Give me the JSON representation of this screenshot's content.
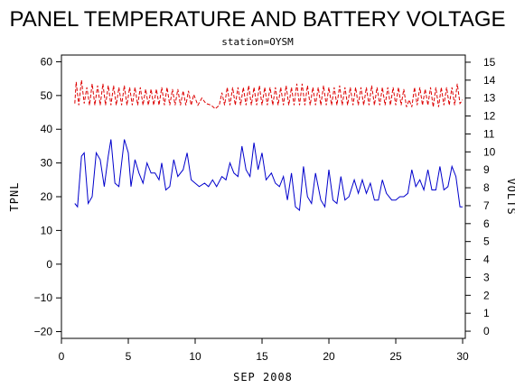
{
  "chart_data": {
    "type": "line",
    "title": "PANEL TEMPERATURE AND BATTERY VOLTAGE",
    "subtitle": "station=OYSM",
    "xlabel": "SEP 2008",
    "ylabel_left": "TPNL",
    "ylabel_right": "VOLTS",
    "xlim": [
      0,
      30.2
    ],
    "ylim_left": [
      -22,
      62
    ],
    "ylim_right": [
      -0.4,
      15.4
    ],
    "x_ticks": [
      0,
      5,
      10,
      15,
      20,
      25,
      30
    ],
    "y_left_ticks": [
      -20,
      -10,
      0,
      10,
      20,
      30,
      40,
      50,
      60
    ],
    "y_right_ticks": [
      0,
      1,
      2,
      3,
      4,
      5,
      6,
      7,
      8,
      9,
      10,
      11,
      12,
      13,
      14,
      15
    ],
    "colors": {
      "temperature": "#0000cc",
      "voltage": "#dd0000",
      "axes": "#000000"
    },
    "series": [
      {
        "axis": "left",
        "values": [
          [
            1.0,
            18
          ],
          [
            1.2,
            17
          ],
          [
            1.5,
            32
          ],
          [
            1.7,
            33
          ],
          [
            2.0,
            18
          ],
          [
            2.3,
            20
          ],
          [
            2.6,
            33
          ],
          [
            2.9,
            31
          ],
          [
            3.2,
            23
          ],
          [
            3.5,
            32
          ],
          [
            3.7,
            37
          ],
          [
            4.0,
            24
          ],
          [
            4.3,
            23
          ],
          [
            4.7,
            37
          ],
          [
            5.0,
            33
          ],
          [
            5.2,
            23
          ],
          [
            5.5,
            31
          ],
          [
            5.8,
            27
          ],
          [
            6.1,
            24
          ],
          [
            6.4,
            30
          ],
          [
            6.7,
            27
          ],
          [
            7.0,
            27
          ],
          [
            7.3,
            25
          ],
          [
            7.5,
            30
          ],
          [
            7.8,
            22
          ],
          [
            8.1,
            23
          ],
          [
            8.4,
            31
          ],
          [
            8.7,
            26
          ],
          [
            9.1,
            28
          ],
          [
            9.4,
            33
          ],
          [
            9.7,
            25
          ],
          [
            10.0,
            24
          ],
          [
            10.3,
            23
          ],
          [
            10.7,
            24
          ],
          [
            11.0,
            23
          ],
          [
            11.3,
            25
          ],
          [
            11.6,
            23
          ],
          [
            12.0,
            26
          ],
          [
            12.3,
            25
          ],
          [
            12.6,
            30
          ],
          [
            12.9,
            27
          ],
          [
            13.2,
            26
          ],
          [
            13.5,
            35
          ],
          [
            13.8,
            28
          ],
          [
            14.1,
            26
          ],
          [
            14.4,
            36
          ],
          [
            14.7,
            28
          ],
          [
            15.0,
            33
          ],
          [
            15.3,
            25
          ],
          [
            15.7,
            27
          ],
          [
            16.0,
            24
          ],
          [
            16.3,
            23
          ],
          [
            16.6,
            26
          ],
          [
            16.9,
            19
          ],
          [
            17.2,
            27
          ],
          [
            17.5,
            17
          ],
          [
            17.8,
            16
          ],
          [
            18.1,
            29
          ],
          [
            18.4,
            20
          ],
          [
            18.7,
            18
          ],
          [
            19.0,
            27
          ],
          [
            19.4,
            19
          ],
          [
            19.7,
            17
          ],
          [
            20.0,
            28
          ],
          [
            20.3,
            19
          ],
          [
            20.6,
            18
          ],
          [
            20.9,
            26
          ],
          [
            21.2,
            19
          ],
          [
            21.5,
            20
          ],
          [
            21.9,
            25
          ],
          [
            22.2,
            21
          ],
          [
            22.5,
            25
          ],
          [
            22.8,
            21
          ],
          [
            23.1,
            24
          ],
          [
            23.4,
            19
          ],
          [
            23.7,
            19
          ],
          [
            24.0,
            25
          ],
          [
            24.3,
            21
          ],
          [
            24.7,
            19
          ],
          [
            25.0,
            19
          ],
          [
            25.3,
            20
          ],
          [
            25.6,
            20
          ],
          [
            25.9,
            21
          ],
          [
            26.2,
            28
          ],
          [
            26.5,
            23
          ],
          [
            26.8,
            25
          ],
          [
            27.1,
            22
          ],
          [
            27.4,
            28
          ],
          [
            27.7,
            22
          ],
          [
            28.0,
            22
          ],
          [
            28.3,
            29
          ],
          [
            28.6,
            22
          ],
          [
            28.9,
            23
          ],
          [
            29.2,
            29
          ],
          [
            29.5,
            26
          ],
          [
            29.8,
            17
          ],
          [
            30.0,
            17
          ]
        ]
      },
      {
        "axis": "right",
        "values": [
          [
            1.0,
            12.7
          ],
          [
            1.1,
            13.9
          ],
          [
            1.3,
            12.6
          ],
          [
            1.5,
            14.0
          ],
          [
            1.7,
            12.7
          ],
          [
            1.9,
            13.6
          ],
          [
            2.1,
            12.6
          ],
          [
            2.3,
            13.8
          ],
          [
            2.5,
            12.6
          ],
          [
            2.7,
            13.7
          ],
          [
            2.9,
            12.6
          ],
          [
            3.1,
            13.8
          ],
          [
            3.3,
            12.6
          ],
          [
            3.5,
            13.7
          ],
          [
            3.7,
            12.6
          ],
          [
            3.9,
            13.7
          ],
          [
            4.1,
            12.6
          ],
          [
            4.3,
            13.6
          ],
          [
            4.5,
            12.6
          ],
          [
            4.7,
            13.7
          ],
          [
            4.9,
            12.6
          ],
          [
            5.1,
            13.6
          ],
          [
            5.3,
            12.6
          ],
          [
            5.5,
            13.6
          ],
          [
            5.7,
            12.6
          ],
          [
            5.9,
            13.6
          ],
          [
            6.1,
            12.6
          ],
          [
            6.3,
            13.5
          ],
          [
            6.5,
            12.6
          ],
          [
            6.7,
            13.5
          ],
          [
            6.9,
            12.6
          ],
          [
            7.1,
            13.5
          ],
          [
            7.3,
            12.6
          ],
          [
            7.5,
            13.6
          ],
          [
            7.7,
            12.6
          ],
          [
            7.9,
            13.6
          ],
          [
            8.1,
            12.6
          ],
          [
            8.3,
            13.5
          ],
          [
            8.5,
            12.6
          ],
          [
            8.7,
            13.5
          ],
          [
            8.9,
            12.6
          ],
          [
            9.1,
            13.4
          ],
          [
            9.3,
            12.6
          ],
          [
            9.5,
            13.4
          ],
          [
            9.7,
            12.6
          ],
          [
            9.9,
            13.2
          ],
          [
            10.2,
            12.6
          ],
          [
            10.5,
            13.0
          ],
          [
            10.8,
            12.7
          ],
          [
            11.2,
            12.6
          ],
          [
            11.5,
            12.4
          ],
          [
            11.8,
            12.6
          ],
          [
            12.0,
            13.3
          ],
          [
            12.2,
            12.6
          ],
          [
            12.4,
            13.6
          ],
          [
            12.6,
            12.6
          ],
          [
            12.8,
            13.6
          ],
          [
            13.0,
            12.6
          ],
          [
            13.2,
            13.6
          ],
          [
            13.4,
            12.6
          ],
          [
            13.6,
            13.6
          ],
          [
            13.8,
            12.6
          ],
          [
            14.0,
            13.7
          ],
          [
            14.2,
            12.6
          ],
          [
            14.4,
            13.6
          ],
          [
            14.6,
            12.6
          ],
          [
            14.8,
            13.7
          ],
          [
            15.0,
            12.6
          ],
          [
            15.2,
            13.6
          ],
          [
            15.4,
            12.6
          ],
          [
            15.6,
            13.6
          ],
          [
            15.8,
            12.6
          ],
          [
            16.0,
            13.6
          ],
          [
            16.2,
            12.6
          ],
          [
            16.4,
            13.6
          ],
          [
            16.6,
            12.6
          ],
          [
            16.8,
            13.7
          ],
          [
            17.0,
            12.6
          ],
          [
            17.2,
            13.6
          ],
          [
            17.4,
            12.6
          ],
          [
            17.6,
            13.8
          ],
          [
            17.8,
            12.6
          ],
          [
            18.0,
            13.8
          ],
          [
            18.2,
            12.6
          ],
          [
            18.4,
            13.7
          ],
          [
            18.6,
            12.6
          ],
          [
            18.8,
            13.6
          ],
          [
            19.0,
            12.6
          ],
          [
            19.2,
            13.6
          ],
          [
            19.4,
            12.6
          ],
          [
            19.6,
            13.7
          ],
          [
            19.8,
            12.6
          ],
          [
            20.0,
            13.6
          ],
          [
            20.2,
            12.6
          ],
          [
            20.4,
            13.6
          ],
          [
            20.6,
            12.6
          ],
          [
            20.8,
            13.7
          ],
          [
            21.0,
            12.6
          ],
          [
            21.2,
            13.6
          ],
          [
            21.4,
            12.6
          ],
          [
            21.6,
            13.6
          ],
          [
            21.8,
            12.6
          ],
          [
            22.0,
            13.6
          ],
          [
            22.2,
            12.6
          ],
          [
            22.4,
            13.6
          ],
          [
            22.6,
            12.6
          ],
          [
            22.8,
            13.6
          ],
          [
            23.0,
            12.6
          ],
          [
            23.2,
            13.7
          ],
          [
            23.4,
            12.6
          ],
          [
            23.6,
            13.6
          ],
          [
            23.8,
            12.6
          ],
          [
            24.0,
            13.6
          ],
          [
            24.2,
            12.6
          ],
          [
            24.4,
            13.6
          ],
          [
            24.6,
            12.6
          ],
          [
            24.8,
            13.6
          ],
          [
            25.0,
            12.6
          ],
          [
            25.2,
            13.6
          ],
          [
            25.4,
            12.6
          ],
          [
            25.6,
            13.5
          ],
          [
            25.8,
            12.5
          ],
          [
            26.0,
            12.9
          ],
          [
            26.2,
            12.5
          ],
          [
            26.4,
            13.6
          ],
          [
            26.6,
            12.6
          ],
          [
            26.8,
            13.6
          ],
          [
            27.0,
            12.6
          ],
          [
            27.2,
            13.5
          ],
          [
            27.4,
            12.6
          ],
          [
            27.6,
            13.6
          ],
          [
            27.8,
            12.5
          ],
          [
            28.0,
            13.6
          ],
          [
            28.2,
            12.5
          ],
          [
            28.4,
            13.6
          ],
          [
            28.6,
            12.6
          ],
          [
            28.8,
            13.6
          ],
          [
            29.0,
            12.6
          ],
          [
            29.2,
            13.6
          ],
          [
            29.4,
            12.6
          ],
          [
            29.6,
            13.8
          ],
          [
            29.8,
            12.7
          ],
          [
            30.0,
            12.9
          ]
        ]
      }
    ]
  }
}
